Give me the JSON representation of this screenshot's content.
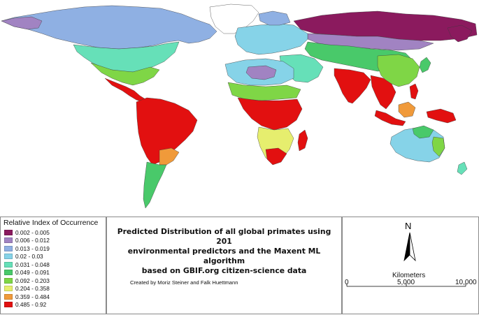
{
  "map": {
    "legend": {
      "heading": "Relative Index of Occurrence",
      "classes": [
        {
          "label": "0.002 - 0.005",
          "color": "#8b1a5e"
        },
        {
          "label": "0.006 - 0.012",
          "color": "#a183c2"
        },
        {
          "label": "0.013 - 0.019",
          "color": "#8fb0e3"
        },
        {
          "label": "0.02 - 0.03",
          "color": "#86d3e8"
        },
        {
          "label": "0.031 - 0.048",
          "color": "#66e0b8"
        },
        {
          "label": "0.049 - 0.091",
          "color": "#49c96a"
        },
        {
          "label": "0.092 - 0.203",
          "color": "#7fd646"
        },
        {
          "label": "0.204 - 0.358",
          "color": "#e6ee6e"
        },
        {
          "label": "0.359 - 0.484",
          "color": "#f09a3a"
        },
        {
          "label": "0.485 - 0.92",
          "color": "#e21010"
        }
      ]
    },
    "title_lines": [
      "Predicted Distribution of all global primates using 201",
      "environmental predictors and the Maxent ML algorithm",
      "based on GBIF.org citizen-science data"
    ],
    "credit": "Created by Moriz Steiner and Falk Huettmann",
    "north_arrow": {
      "label": "N",
      "icon": "north-arrow-icon"
    },
    "scale_bar": {
      "units": "Kilometers",
      "ticks": [
        "0",
        "5,000",
        "10,000"
      ]
    }
  }
}
